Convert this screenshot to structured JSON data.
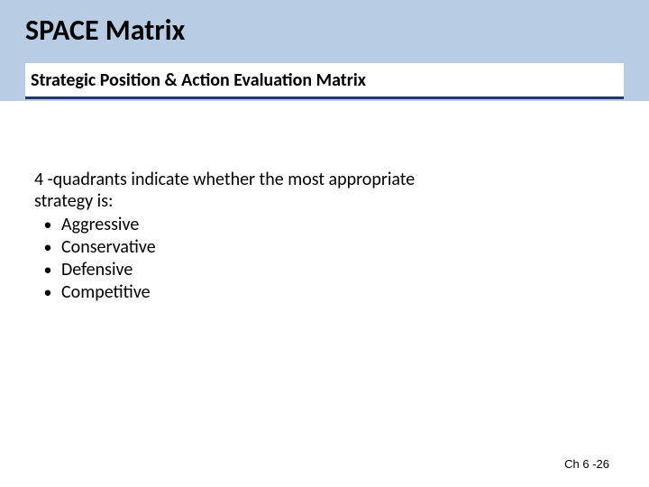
{
  "colors": {
    "header_band": "#b8cce4",
    "subtitle_border": "#1f3864",
    "background": "#ffffff",
    "text": "#000000"
  },
  "typography": {
    "title_fontsize": 32,
    "title_weight": 700,
    "subtitle_fontsize": 20,
    "subtitle_weight": 700,
    "body_fontsize": 20,
    "footer_fontsize": 13,
    "font_family": "Calibri"
  },
  "layout": {
    "slide_width": 720,
    "slide_height": 540,
    "header_band_height": 112
  },
  "title": "SPACE Matrix",
  "subtitle": "Strategic Position & Action Evaluation Matrix",
  "body_intro_line1": "4 -quadrants indicate whether the most appropriate",
  "body_intro_line2": "strategy is:",
  "bullets": {
    "0": "Aggressive",
    "1": "Conservative",
    "2": "Defensive",
    "3": "Competitive"
  },
  "footer": "Ch 6 -26"
}
